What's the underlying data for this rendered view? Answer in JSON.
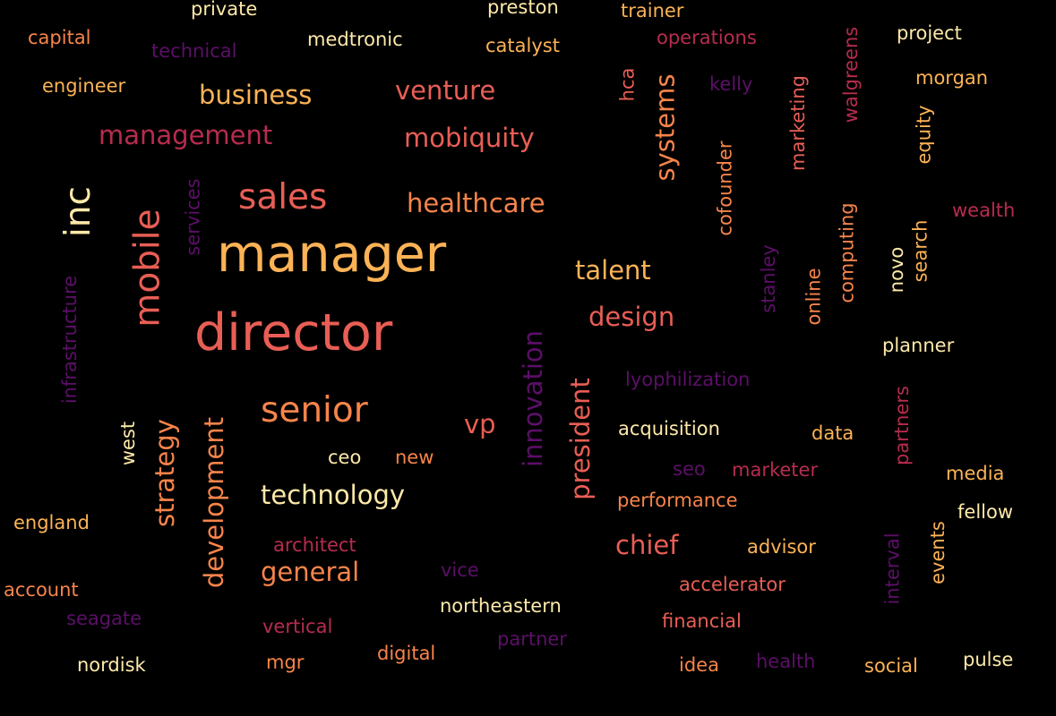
{
  "words": {
    "private": "private",
    "preston": "preston",
    "trainer": "trainer",
    "capital": "capital",
    "technical": "technical",
    "medtronic": "medtronic",
    "catalyst": "catalyst",
    "operations": "operations",
    "walgreens": "walgreens",
    "project": "project",
    "engineer": "engineer",
    "business": "business",
    "venture": "venture",
    "hca": "hca",
    "kelly": "kelly",
    "morgan": "morgan",
    "management": "management",
    "mobiquity": "mobiquity",
    "systems": "systems",
    "marketing": "marketing",
    "equity": "equity",
    "inc": "inc",
    "services": "services",
    "sales": "sales",
    "healthcare": "healthcare",
    "cofounder": "cofounder",
    "wealth": "wealth",
    "mobile": "mobile",
    "manager": "manager",
    "computing": "computing",
    "search": "search",
    "stanley": "stanley",
    "novo": "novo",
    "talent": "talent",
    "online": "online",
    "infrastructure": "infrastructure",
    "design": "design",
    "director": "director",
    "planner": "planner",
    "lyophilization": "lyophilization",
    "innovation": "innovation",
    "president": "president",
    "senior": "senior",
    "partners": "partners",
    "west": "west",
    "strategy": "strategy",
    "development": "development",
    "vp": "vp",
    "acquisition": "acquisition",
    "data": "data",
    "ceo": "ceo",
    "new": "new",
    "seo": "seo",
    "marketer": "marketer",
    "media": "media",
    "technology": "technology",
    "performance": "performance",
    "fellow": "fellow",
    "england": "england",
    "events": "events",
    "chief": "chief",
    "advisor": "advisor",
    "architect": "architect",
    "interval": "interval",
    "general": "general",
    "vice": "vice",
    "accelerator": "accelerator",
    "account": "account",
    "northeastern": "northeastern",
    "seagate": "seagate",
    "financial": "financial",
    "vertical": "vertical",
    "partner": "partner",
    "digital": "digital",
    "nordisk": "nordisk",
    "mgr": "mgr",
    "idea": "idea",
    "health": "health",
    "social": "social",
    "pulse": "pulse"
  },
  "palette": {
    "background": "#000000",
    "pale_yellow": "#fde9a9",
    "yellow_orange": "#fcb355",
    "orange": "#f7844a",
    "salmon": "#e85e55",
    "crimson": "#b72c4e",
    "magenta": "#8b1c6a",
    "purple": "#5c0f68"
  }
}
